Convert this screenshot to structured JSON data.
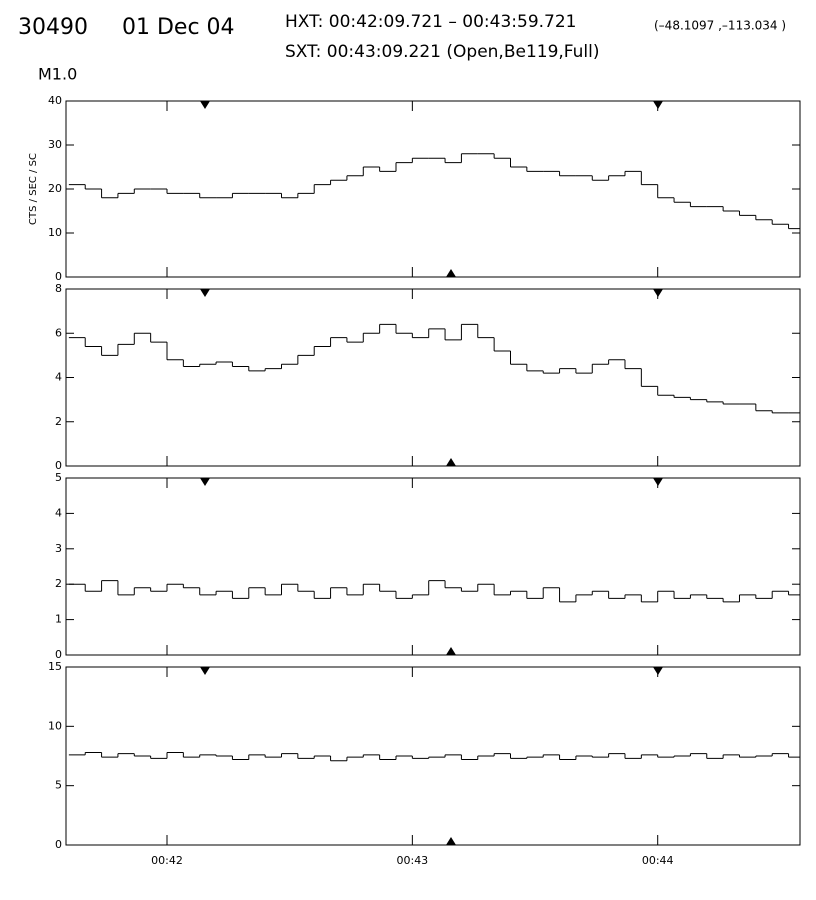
{
  "header": {
    "id": "30490",
    "date": "01 Dec 04",
    "hxt": "HXT: 00:42:09.721 – 00:43:59.721",
    "coords": "(–48.1097 ,–113.034 )",
    "sxt": "SXT: 00:43:09.221 (Open,Be119,Full)",
    "class": "M1.0"
  },
  "chart_data": [
    {
      "type": "line",
      "step": true,
      "y_label": "CTS / SEC / SC",
      "color": "#000000",
      "x": [
        2496,
        2500,
        2504,
        2508,
        2512,
        2516,
        2520,
        2524,
        2528,
        2532,
        2536,
        2540,
        2544,
        2548,
        2552,
        2556,
        2560,
        2564,
        2568,
        2572,
        2576,
        2580,
        2584,
        2588,
        2592,
        2596,
        2600,
        2604,
        2608,
        2612,
        2616,
        2620,
        2624,
        2628,
        2632,
        2636,
        2640,
        2644,
        2648,
        2652,
        2656,
        2660,
        2664,
        2668,
        2672
      ],
      "values": [
        21,
        20,
        18,
        19,
        20,
        20,
        19,
        19,
        18,
        18,
        19,
        19,
        19,
        18,
        19,
        21,
        22,
        23,
        25,
        24,
        26,
        27,
        27,
        26,
        28,
        28,
        27,
        25,
        24,
        24,
        23,
        23,
        22,
        23,
        24,
        21,
        18,
        17,
        16,
        16,
        15,
        14,
        13,
        12,
        11
      ],
      "xlim": [
        2495.3,
        2674.8
      ],
      "xticks": [
        2520,
        2580,
        2640
      ],
      "ylim": [
        0,
        40
      ],
      "yticks": [
        0,
        10,
        20,
        30,
        40
      ]
    },
    {
      "type": "line",
      "step": true,
      "color": "#000000",
      "x": [
        2496,
        2500,
        2504,
        2508,
        2512,
        2516,
        2520,
        2524,
        2528,
        2532,
        2536,
        2540,
        2544,
        2548,
        2552,
        2556,
        2560,
        2564,
        2568,
        2572,
        2576,
        2580,
        2584,
        2588,
        2592,
        2596,
        2600,
        2604,
        2608,
        2612,
        2616,
        2620,
        2624,
        2628,
        2632,
        2636,
        2640,
        2644,
        2648,
        2652,
        2656,
        2660,
        2664,
        2668,
        2672
      ],
      "values": [
        5.8,
        5.4,
        5,
        5.5,
        6,
        5.6,
        4.8,
        4.5,
        4.6,
        4.7,
        4.5,
        4.3,
        4.4,
        4.6,
        5,
        5.4,
        5.8,
        5.6,
        6,
        6.4,
        6,
        5.8,
        6.2,
        5.7,
        6.4,
        5.8,
        5.2,
        4.6,
        4.3,
        4.2,
        4.4,
        4.2,
        4.6,
        4.8,
        4.4,
        3.6,
        3.2,
        3.1,
        3.0,
        2.9,
        2.8,
        2.8,
        2.5,
        2.4,
        2.4
      ],
      "xlim": [
        2495.3,
        2674.8
      ],
      "xticks": [
        2520,
        2580,
        2640
      ],
      "ylim": [
        0,
        8
      ],
      "yticks": [
        0,
        2,
        4,
        6,
        8
      ]
    },
    {
      "type": "line",
      "step": true,
      "color": "#000000",
      "x": [
        2496,
        2500,
        2504,
        2508,
        2512,
        2516,
        2520,
        2524,
        2528,
        2532,
        2536,
        2540,
        2544,
        2548,
        2552,
        2556,
        2560,
        2564,
        2568,
        2572,
        2576,
        2580,
        2584,
        2588,
        2592,
        2596,
        2600,
        2604,
        2608,
        2612,
        2616,
        2620,
        2624,
        2628,
        2632,
        2636,
        2640,
        2644,
        2648,
        2652,
        2656,
        2660,
        2664,
        2668,
        2672
      ],
      "values": [
        2.0,
        1.8,
        2.1,
        1.7,
        1.9,
        1.8,
        2.0,
        1.9,
        1.7,
        1.8,
        1.6,
        1.9,
        1.7,
        2.0,
        1.8,
        1.6,
        1.9,
        1.7,
        2.0,
        1.8,
        1.6,
        1.7,
        2.1,
        1.9,
        1.8,
        2.0,
        1.7,
        1.8,
        1.6,
        1.9,
        1.5,
        1.7,
        1.8,
        1.6,
        1.7,
        1.5,
        1.8,
        1.6,
        1.7,
        1.6,
        1.5,
        1.7,
        1.6,
        1.8,
        1.7
      ],
      "xlim": [
        2495.3,
        2674.8
      ],
      "xticks": [
        2520,
        2580,
        2640
      ],
      "ylim": [
        0,
        5
      ],
      "yticks": [
        0,
        1,
        2,
        3,
        4,
        5
      ]
    },
    {
      "type": "line",
      "step": true,
      "color": "#000000",
      "x": [
        2496,
        2500,
        2504,
        2508,
        2512,
        2516,
        2520,
        2524,
        2528,
        2532,
        2536,
        2540,
        2544,
        2548,
        2552,
        2556,
        2560,
        2564,
        2568,
        2572,
        2576,
        2580,
        2584,
        2588,
        2592,
        2596,
        2600,
        2604,
        2608,
        2612,
        2616,
        2620,
        2624,
        2628,
        2632,
        2636,
        2640,
        2644,
        2648,
        2652,
        2656,
        2660,
        2664,
        2668,
        2672
      ],
      "values": [
        7.6,
        7.8,
        7.4,
        7.7,
        7.5,
        7.3,
        7.8,
        7.4,
        7.6,
        7.5,
        7.2,
        7.6,
        7.4,
        7.7,
        7.3,
        7.5,
        7.1,
        7.4,
        7.6,
        7.2,
        7.5,
        7.3,
        7.4,
        7.6,
        7.2,
        7.5,
        7.7,
        7.3,
        7.4,
        7.6,
        7.2,
        7.5,
        7.4,
        7.7,
        7.3,
        7.6,
        7.4,
        7.5,
        7.7,
        7.3,
        7.6,
        7.4,
        7.5,
        7.7,
        7.4
      ],
      "xlim": [
        2495.3,
        2674.8
      ],
      "xticks": [
        {
          "value": 2520,
          "label": "00:42"
        },
        {
          "value": 2580,
          "label": "00:43"
        },
        {
          "value": 2640,
          "label": "00:44"
        }
      ],
      "ylim": [
        0,
        15
      ],
      "yticks": [
        0,
        5,
        10,
        15
      ]
    }
  ]
}
